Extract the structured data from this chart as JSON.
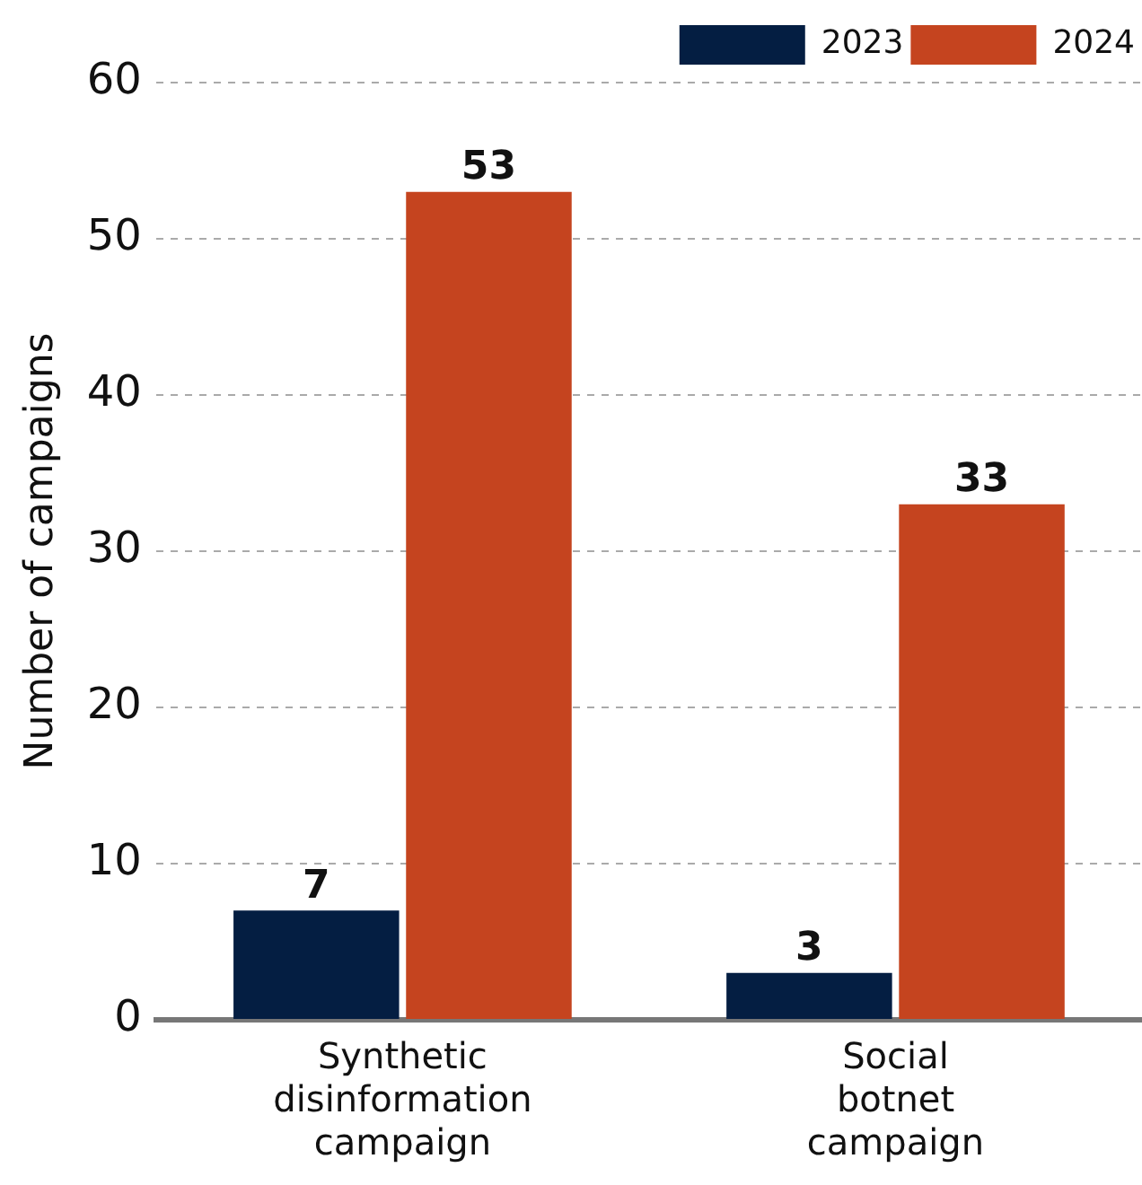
{
  "chart_data": {
    "type": "bar",
    "ylabel": "Number of campaigns",
    "categories": [
      "Synthetic disinformation campaign",
      "Social botnet campaign"
    ],
    "series": [
      {
        "name": "2023",
        "color": "#041e42",
        "values": [
          7,
          3
        ]
      },
      {
        "name": "2024",
        "color": "#c5441f",
        "values": [
          53,
          33
        ]
      }
    ],
    "ylim": [
      0,
      60
    ],
    "yticks": [
      0,
      10,
      20,
      30,
      40,
      50,
      60
    ],
    "grid": "y",
    "legend": "top right",
    "data_labels": true
  }
}
